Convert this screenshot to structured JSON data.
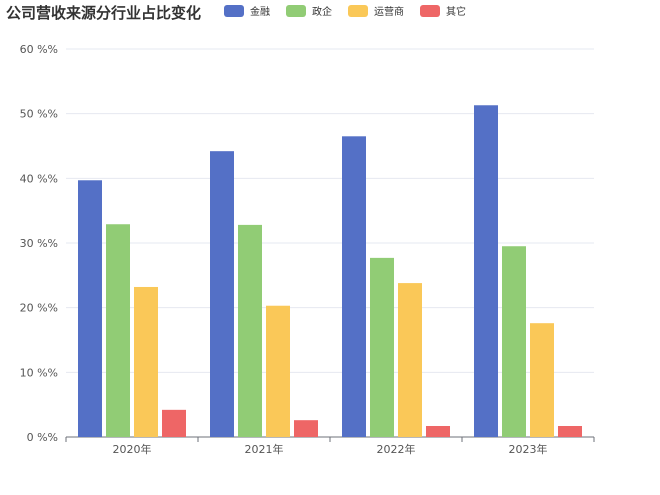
{
  "chart_data": {
    "type": "bar",
    "title": "公司营收来源分行业占比变化",
    "categories": [
      "2020年",
      "2021年",
      "2022年",
      "2023年"
    ],
    "series": [
      {
        "name": "金融",
        "color": "#5470c6",
        "values": [
          39.7,
          44.2,
          46.5,
          51.3
        ]
      },
      {
        "name": "政企",
        "color": "#91cc75",
        "values": [
          32.9,
          32.8,
          27.7,
          29.5
        ]
      },
      {
        "name": "运营商",
        "color": "#fac858",
        "values": [
          23.2,
          20.3,
          23.8,
          17.6
        ]
      },
      {
        "name": "其它",
        "color": "#ee6666",
        "values": [
          4.2,
          2.6,
          1.7,
          1.7
        ]
      }
    ],
    "y_ticks": [
      "0 %%",
      "10 %%",
      "20 %%",
      "30 %%",
      "40 %%",
      "50 %%",
      "60 %%"
    ],
    "ylim": [
      0,
      60
    ],
    "grid": true,
    "legend_position": "top"
  }
}
